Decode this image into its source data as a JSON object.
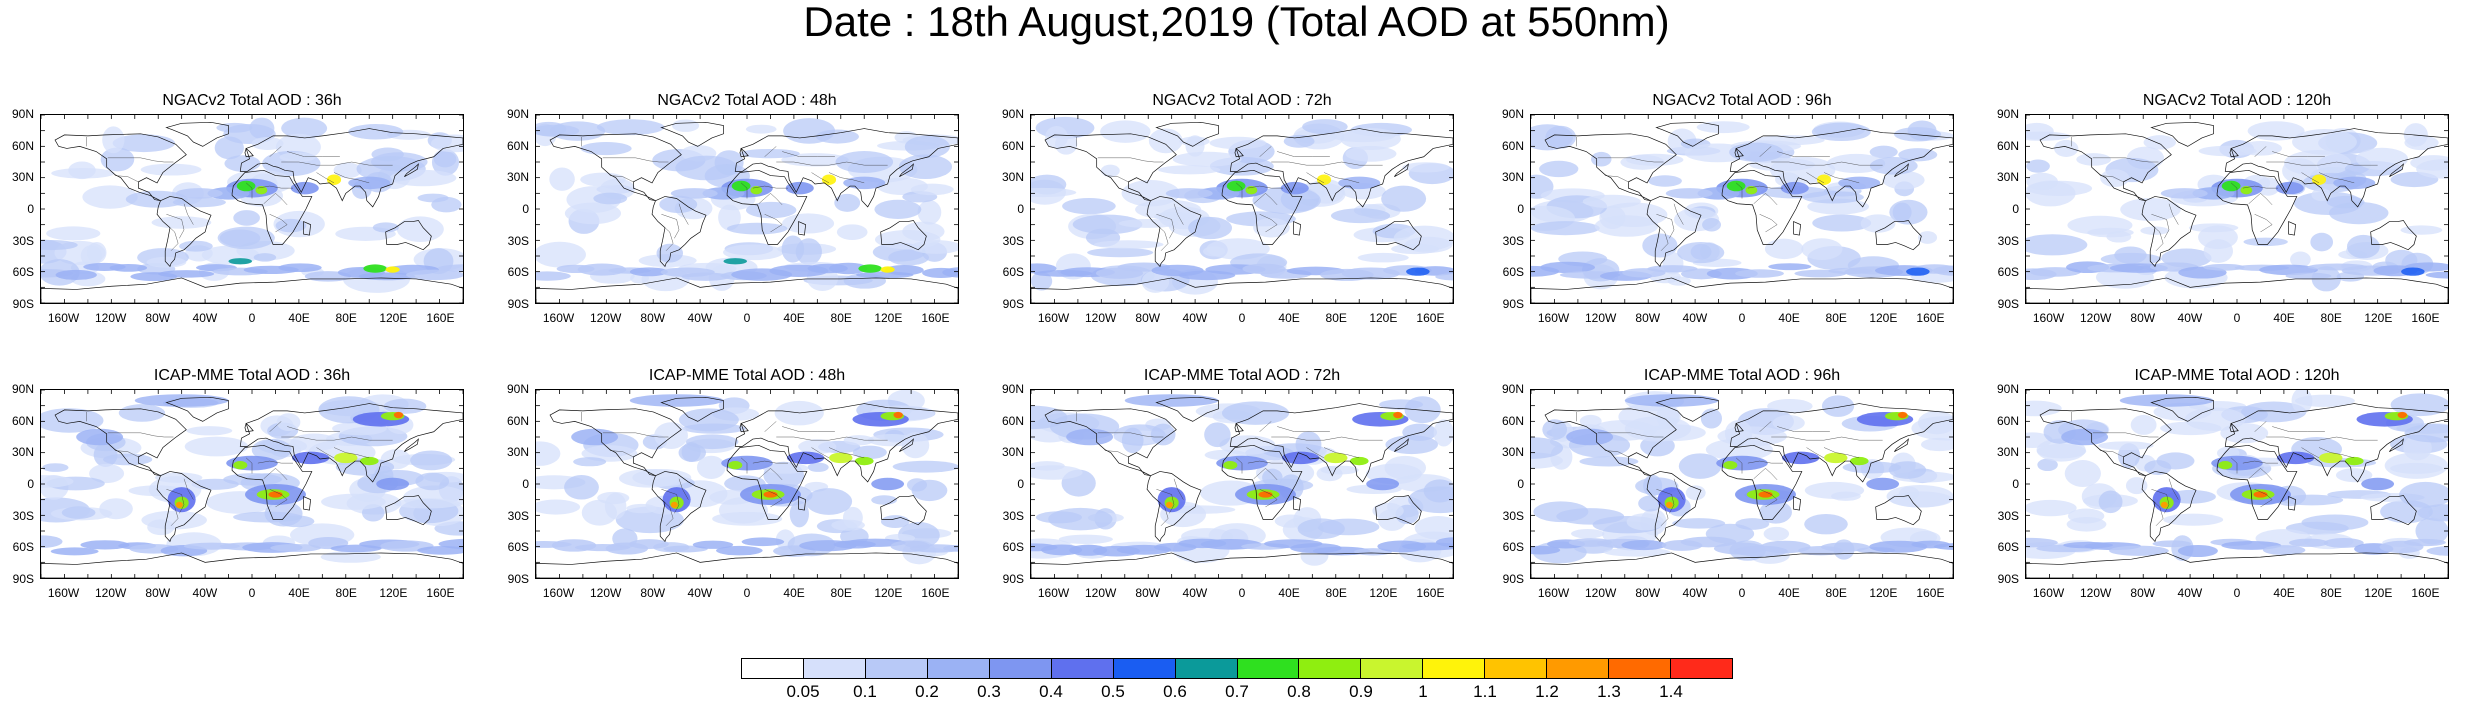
{
  "title": "Date : 18th August,2019 (Total AOD at 550nm)",
  "lat_labels": [
    "90N",
    "60N",
    "30N",
    "0",
    "30S",
    "60S",
    "90S"
  ],
  "lon_labels": [
    "160W",
    "120W",
    "80W",
    "40W",
    "0",
    "40E",
    "80E",
    "120E",
    "160E"
  ],
  "panels": [
    {
      "title": "NGACv2 Total AOD : 36h",
      "model": "NGACv2",
      "lead": "36h"
    },
    {
      "title": "NGACv2 Total AOD : 48h",
      "model": "NGACv2",
      "lead": "48h"
    },
    {
      "title": "NGACv2 Total AOD : 72h",
      "model": "NGACv2",
      "lead": "72h"
    },
    {
      "title": "NGACv2 Total AOD : 96h",
      "model": "NGACv2",
      "lead": "96h"
    },
    {
      "title": "NGACv2 Total AOD : 120h",
      "model": "NGACv2",
      "lead": "120h"
    },
    {
      "title": "ICAP-MME Total AOD : 36h",
      "model": "ICAP-MME",
      "lead": "36h"
    },
    {
      "title": "ICAP-MME Total AOD : 48h",
      "model": "ICAP-MME",
      "lead": "48h"
    },
    {
      "title": "ICAP-MME Total AOD : 72h",
      "model": "ICAP-MME",
      "lead": "72h"
    },
    {
      "title": "ICAP-MME Total AOD : 96h",
      "model": "ICAP-MME",
      "lead": "96h"
    },
    {
      "title": "ICAP-MME Total AOD : 120h",
      "model": "ICAP-MME",
      "lead": "120h"
    }
  ],
  "colorbar": {
    "labels": [
      "0.05",
      "0.1",
      "0.2",
      "0.3",
      "0.4",
      "0.5",
      "0.6",
      "0.7",
      "0.8",
      "0.9",
      "1",
      "1.1",
      "1.2",
      "1.3",
      "1.4"
    ],
    "colors": [
      "#ffffff",
      "#d6e0fb",
      "#b8c9f7",
      "#9bb2f4",
      "#7e96f1",
      "#5f70ee",
      "#1a5df2",
      "#0b9a9a",
      "#2fe01f",
      "#8fee10",
      "#c9f52e",
      "#fff30a",
      "#ffc300",
      "#ff9a00",
      "#ff6a00",
      "#ff2a1a"
    ]
  }
}
